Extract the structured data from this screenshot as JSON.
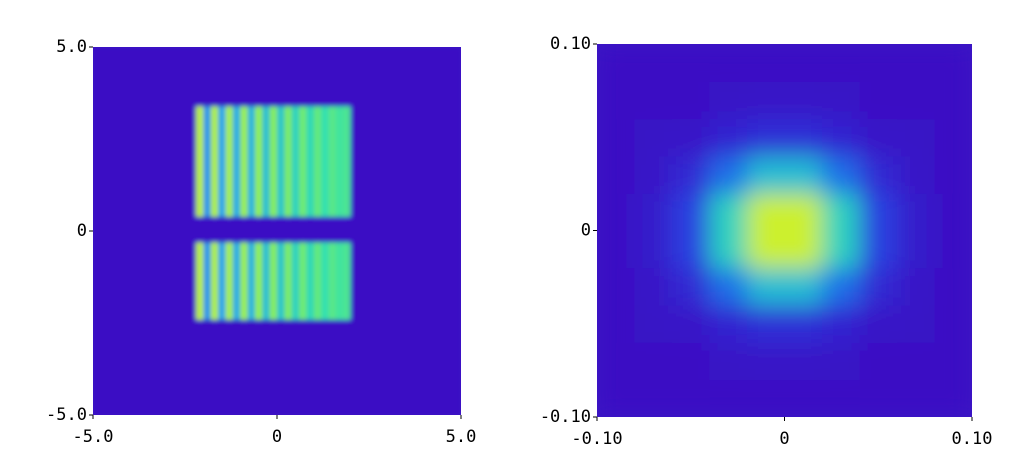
{
  "chart_data": [
    {
      "type": "heatmap",
      "colormap": [
        "#3a0fc4",
        "#2a3fe0",
        "#12a0f0",
        "#30e0b0",
        "#90f050",
        "#e8f020",
        "#ff2000"
      ],
      "xlim": [
        -5,
        5
      ],
      "ylim": [
        -5,
        5
      ],
      "xticks": [
        {
          "value": -5,
          "label": "-5.0"
        },
        0,
        {
          "value": 5,
          "label": "5.0"
        }
      ],
      "yticks": [
        {
          "value": -5,
          "label": "-5.0"
        },
        0,
        {
          "value": 5,
          "label": "5.0"
        }
      ],
      "x_edges": [
        -5,
        -2.2,
        -2.0,
        -1.8,
        -1.6,
        -1.4,
        -1.2,
        -1.0,
        -0.8,
        -0.6,
        -0.4,
        -0.2,
        0,
        0.2,
        0.4,
        0.6,
        0.8,
        1.0,
        1.2,
        1.4,
        1.6,
        1.8,
        2.0,
        5
      ],
      "y_edges": [
        -5,
        -2.4,
        -0.3,
        0.4,
        3.4,
        5
      ],
      "z": [
        [
          0,
          0,
          0,
          0,
          0,
          0,
          0,
          0,
          0,
          0,
          0,
          0,
          0,
          0,
          0,
          0,
          0,
          0,
          0,
          0,
          0,
          0,
          0
        ],
        [
          0,
          0.75,
          0.31,
          0.73,
          0.34,
          0.71,
          0.36,
          0.69,
          0.38,
          0.67,
          0.41,
          0.65,
          0.43,
          0.63,
          0.46,
          0.61,
          0.48,
          0.59,
          0.5,
          0.57,
          0.53,
          0.55,
          0
        ],
        [
          0,
          0,
          0,
          0,
          0,
          0,
          0,
          0,
          0,
          0,
          0,
          0,
          0,
          0,
          0,
          0,
          0,
          0,
          0,
          0,
          0,
          0,
          0
        ],
        [
          0,
          0.75,
          0.31,
          0.73,
          0.34,
          0.71,
          0.36,
          0.69,
          0.38,
          0.67,
          0.41,
          0.65,
          0.43,
          0.63,
          0.46,
          0.61,
          0.48,
          0.59,
          0.5,
          0.57,
          0.53,
          0.55,
          0
        ],
        [
          0,
          0,
          0,
          0,
          0,
          0,
          0,
          0,
          0,
          0,
          0,
          0,
          0,
          0,
          0,
          0,
          0,
          0,
          0,
          0,
          0,
          0,
          0
        ]
      ]
    },
    {
      "type": "heatmap",
      "colormap": [
        "#3a0fc4",
        "#2a3fe0",
        "#12a0f0",
        "#30e0b0",
        "#90f050",
        "#e8f020",
        "#ff2000"
      ],
      "xlim": [
        -0.1,
        0.1
      ],
      "ylim": [
        -0.1,
        0.1
      ],
      "xticks": [
        {
          "value": -0.1,
          "label": "-0.10"
        },
        0,
        {
          "value": 0.1,
          "label": "0.10"
        }
      ],
      "yticks": [
        {
          "value": -0.1,
          "label": "-0.10"
        },
        0,
        {
          "value": 0.1,
          "label": "0.10"
        }
      ],
      "x_edges": [
        -0.1,
        -0.08,
        -0.06,
        -0.04,
        -0.02,
        0,
        0.02,
        0.04,
        0.06,
        0.08,
        0.1
      ],
      "y_edges": [
        -0.1,
        -0.08,
        -0.06,
        -0.04,
        -0.02,
        0,
        0.02,
        0.04,
        0.06,
        0.08,
        0.1
      ],
      "z": [
        [
          0,
          0,
          0,
          0,
          0,
          0,
          0,
          0,
          0,
          0
        ],
        [
          0,
          0,
          0,
          0.01,
          0.02,
          0.02,
          0.01,
          0,
          0,
          0
        ],
        [
          0,
          0.01,
          0.02,
          0.07,
          0.11,
          0.11,
          0.07,
          0.02,
          0.01,
          0
        ],
        [
          0,
          0.02,
          0.09,
          0.25,
          0.41,
          0.41,
          0.25,
          0.09,
          0.02,
          0
        ],
        [
          0,
          0.04,
          0.17,
          0.46,
          0.78,
          0.78,
          0.46,
          0.17,
          0.04,
          0
        ],
        [
          0,
          0.04,
          0.17,
          0.46,
          0.78,
          0.78,
          0.46,
          0.17,
          0.04,
          0
        ],
        [
          0,
          0.02,
          0.09,
          0.25,
          0.41,
          0.41,
          0.25,
          0.09,
          0.02,
          0
        ],
        [
          0,
          0.01,
          0.02,
          0.07,
          0.11,
          0.11,
          0.07,
          0.02,
          0.01,
          0
        ],
        [
          0,
          0,
          0,
          0.01,
          0.02,
          0.02,
          0.01,
          0,
          0,
          0
        ],
        [
          0,
          0,
          0,
          0,
          0,
          0,
          0,
          0,
          0,
          0
        ]
      ]
    }
  ]
}
